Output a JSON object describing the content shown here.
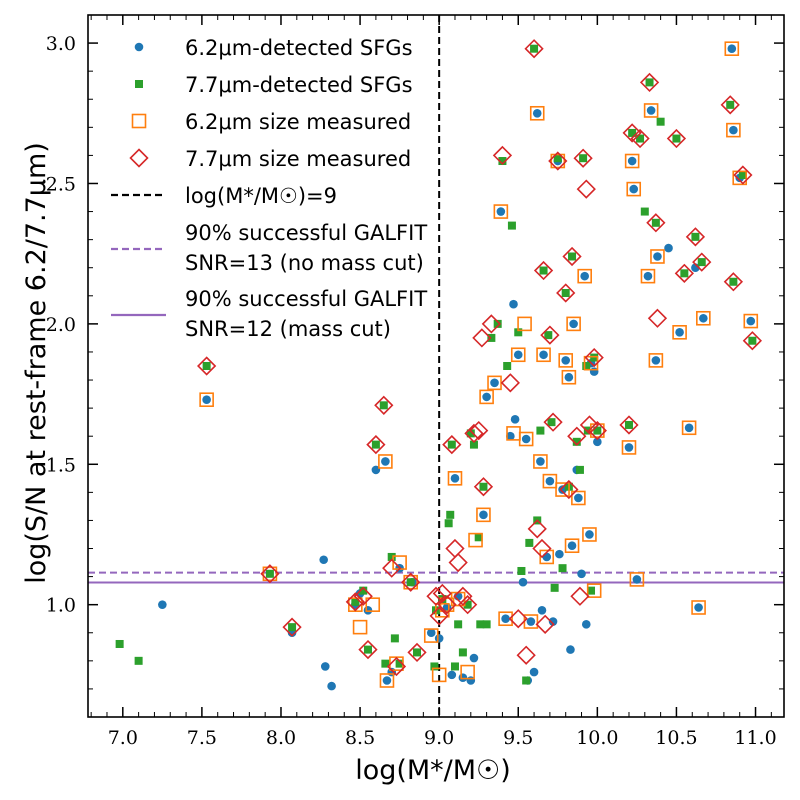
{
  "chart_data": {
    "type": "scatter",
    "title": "",
    "xlabel": "log(M*/M☉)",
    "ylabel": "log(S/N at rest-frame 6.2/7.7μm)",
    "xlim": [
      6.78,
      11.18
    ],
    "ylim": [
      0.6,
      3.1
    ],
    "x_ticks": [
      "7.0",
      "7.5",
      "8.0",
      "8.5",
      "9.0",
      "9.5",
      "10.0",
      "10.5",
      "11.0"
    ],
    "y_ticks": [
      "1.0",
      "1.5",
      "2.0",
      "2.5",
      "3.0"
    ],
    "grid": false,
    "legend_position": "top-left",
    "colors": {
      "blue": "#1f77b4",
      "green": "#2ca02c",
      "orange": "#ff7f0e",
      "red": "#d62728",
      "purple": "#9467bd",
      "black": "#000000"
    },
    "legend": [
      {
        "label": "6.2μm-detected SFGs",
        "marker": "circle",
        "color": "#1f77b4"
      },
      {
        "label": "7.7μm-detected SFGs",
        "marker": "square",
        "color": "#2ca02c"
      },
      {
        "label": "6.2μm size measured",
        "marker": "open-square",
        "color": "#ff7f0e"
      },
      {
        "label": "7.7μm size measured",
        "marker": "open-diamond",
        "color": "#d62728"
      },
      {
        "label": "log(M*/M☉)=9",
        "marker": "dashed-line",
        "color": "#000000"
      },
      {
        "label": "90% successful GALFIT",
        "label2": "SNR=13 (no mass cut)",
        "marker": "dashed-line",
        "color": "#9467bd"
      },
      {
        "label": "90% successful GALFIT",
        "label2": "SNR=12 (mass cut)",
        "marker": "solid-line",
        "color": "#9467bd"
      }
    ],
    "reference_lines": [
      {
        "orientation": "vertical",
        "x": 9.0,
        "style": "dashed",
        "color": "#000000"
      },
      {
        "orientation": "horizontal",
        "y": 1.114,
        "style": "dashed",
        "color": "#9467bd"
      },
      {
        "orientation": "horizontal",
        "y": 1.079,
        "style": "solid",
        "color": "#9467bd"
      }
    ],
    "series": [
      {
        "name": "6.2μm-detected SFGs",
        "marker": "circle",
        "points": [
          [
            7.25,
            1.0
          ],
          [
            7.53,
            1.73
          ],
          [
            8.07,
            0.9
          ],
          [
            8.27,
            1.16
          ],
          [
            8.28,
            0.78
          ],
          [
            8.32,
            0.71
          ],
          [
            8.47,
            1.0
          ],
          [
            8.5,
            1.04
          ],
          [
            8.55,
            0.98
          ],
          [
            8.6,
            1.48
          ],
          [
            8.66,
            1.51
          ],
          [
            8.67,
            0.73
          ],
          [
            8.7,
            0.76
          ],
          [
            8.75,
            1.13
          ],
          [
            8.83,
            1.08
          ],
          [
            8.95,
            0.9
          ],
          [
            9.0,
            0.88
          ],
          [
            9.05,
            0.99
          ],
          [
            9.08,
            0.75
          ],
          [
            9.1,
            1.45
          ],
          [
            9.12,
            1.03
          ],
          [
            9.15,
            0.74
          ],
          [
            9.2,
            0.73
          ],
          [
            9.22,
            0.81
          ],
          [
            9.28,
            1.32
          ],
          [
            9.3,
            1.74
          ],
          [
            9.35,
            1.79
          ],
          [
            9.39,
            2.4
          ],
          [
            9.42,
            0.95
          ],
          [
            9.45,
            1.6
          ],
          [
            9.47,
            2.07
          ],
          [
            9.48,
            1.66
          ],
          [
            9.5,
            1.89
          ],
          [
            9.53,
            1.08
          ],
          [
            9.55,
            1.59
          ],
          [
            9.56,
            0.73
          ],
          [
            9.58,
            0.94
          ],
          [
            9.6,
            0.76
          ],
          [
            9.62,
            2.75
          ],
          [
            9.64,
            1.51
          ],
          [
            9.65,
            0.98
          ],
          [
            9.66,
            1.89
          ],
          [
            9.68,
            1.17
          ],
          [
            9.7,
            1.44
          ],
          [
            9.72,
            0.94
          ],
          [
            9.75,
            2.58
          ],
          [
            9.76,
            1.18
          ],
          [
            9.78,
            1.41
          ],
          [
            9.8,
            1.87
          ],
          [
            9.82,
            1.81
          ],
          [
            9.83,
            0.84
          ],
          [
            9.84,
            1.21
          ],
          [
            9.85,
            2.0
          ],
          [
            9.87,
            1.48
          ],
          [
            9.88,
            1.38
          ],
          [
            9.9,
            1.11
          ],
          [
            9.92,
            2.17
          ],
          [
            9.93,
            0.93
          ],
          [
            9.95,
            1.25
          ],
          [
            9.96,
            1.86
          ],
          [
            9.98,
            1.83
          ],
          [
            10.0,
            1.58
          ],
          [
            10.2,
            1.56
          ],
          [
            10.22,
            2.58
          ],
          [
            10.23,
            2.48
          ],
          [
            10.25,
            1.09
          ],
          [
            10.32,
            2.17
          ],
          [
            10.34,
            2.76
          ],
          [
            10.37,
            1.87
          ],
          [
            10.38,
            2.24
          ],
          [
            10.45,
            2.27
          ],
          [
            10.52,
            1.97
          ],
          [
            10.58,
            1.63
          ],
          [
            10.62,
            2.2
          ],
          [
            10.64,
            0.99
          ],
          [
            10.67,
            2.02
          ],
          [
            10.85,
            2.98
          ],
          [
            10.86,
            2.69
          ],
          [
            10.9,
            2.52
          ],
          [
            10.97,
            2.01
          ]
        ]
      },
      {
        "name": "7.7μm-detected SFGs",
        "marker": "square",
        "points": [
          [
            6.98,
            0.86
          ],
          [
            7.1,
            0.8
          ],
          [
            7.53,
            1.85
          ],
          [
            7.93,
            1.11
          ],
          [
            8.07,
            0.92
          ],
          [
            8.47,
            1.01
          ],
          [
            8.52,
            1.05
          ],
          [
            8.55,
            0.84
          ],
          [
            8.6,
            1.57
          ],
          [
            8.65,
            1.71
          ],
          [
            8.66,
            0.79
          ],
          [
            8.7,
            1.17
          ],
          [
            8.72,
            0.88
          ],
          [
            8.75,
            0.79
          ],
          [
            8.82,
            1.08
          ],
          [
            8.86,
            0.83
          ],
          [
            8.97,
            0.78
          ],
          [
            8.98,
            0.98
          ],
          [
            9.02,
            1.02
          ],
          [
            9.06,
            1.29
          ],
          [
            9.07,
            1.32
          ],
          [
            9.08,
            1.57
          ],
          [
            9.1,
            0.78
          ],
          [
            9.12,
            0.93
          ],
          [
            9.15,
            0.83
          ],
          [
            9.18,
            1.0
          ],
          [
            9.2,
            1.61
          ],
          [
            9.22,
            1.57
          ],
          [
            9.25,
            1.24
          ],
          [
            9.26,
            0.93
          ],
          [
            9.28,
            1.42
          ],
          [
            9.3,
            0.93
          ],
          [
            9.33,
            1.95
          ],
          [
            9.37,
            2.0
          ],
          [
            9.4,
            2.58
          ],
          [
            9.43,
            1.85
          ],
          [
            9.46,
            2.35
          ],
          [
            9.5,
            1.97
          ],
          [
            9.52,
            1.12
          ],
          [
            9.55,
            0.73
          ],
          [
            9.57,
            1.22
          ],
          [
            9.6,
            2.98
          ],
          [
            9.62,
            1.3
          ],
          [
            9.64,
            1.62
          ],
          [
            9.66,
            2.19
          ],
          [
            9.69,
            1.96
          ],
          [
            9.71,
            1.65
          ],
          [
            9.73,
            1.06
          ],
          [
            9.75,
            2.59
          ],
          [
            9.78,
            1.13
          ],
          [
            9.8,
            2.11
          ],
          [
            9.82,
            1.42
          ],
          [
            9.84,
            2.24
          ],
          [
            9.87,
            1.58
          ],
          [
            9.89,
            1.48
          ],
          [
            9.91,
            2.59
          ],
          [
            9.93,
            1.85
          ],
          [
            9.94,
            1.62
          ],
          [
            9.96,
            1.05
          ],
          [
            9.98,
            1.88
          ],
          [
            10.0,
            1.62
          ],
          [
            10.2,
            1.64
          ],
          [
            10.22,
            2.68
          ],
          [
            10.27,
            2.66
          ],
          [
            10.3,
            2.4
          ],
          [
            10.33,
            2.86
          ],
          [
            10.37,
            2.36
          ],
          [
            10.4,
            2.72
          ],
          [
            10.5,
            2.66
          ],
          [
            10.55,
            2.18
          ],
          [
            10.62,
            2.31
          ],
          [
            10.66,
            2.22
          ],
          [
            10.84,
            2.78
          ],
          [
            10.86,
            2.15
          ],
          [
            10.92,
            2.53
          ],
          [
            10.98,
            1.94
          ]
        ]
      },
      {
        "name": "6.2μm size measured",
        "marker": "open-square",
        "points": [
          [
            7.53,
            1.73
          ],
          [
            7.93,
            1.11
          ],
          [
            8.47,
            1.0
          ],
          [
            8.5,
            0.92
          ],
          [
            8.58,
            1.0
          ],
          [
            8.66,
            1.51
          ],
          [
            8.67,
            0.73
          ],
          [
            8.73,
            0.79
          ],
          [
            8.75,
            1.15
          ],
          [
            8.82,
            1.08
          ],
          [
            8.95,
            0.89
          ],
          [
            9.0,
            0.75
          ],
          [
            9.02,
            0.98
          ],
          [
            9.05,
            1.0
          ],
          [
            9.1,
            1.45
          ],
          [
            9.12,
            1.02
          ],
          [
            9.18,
            0.76
          ],
          [
            9.23,
            1.23
          ],
          [
            9.28,
            1.32
          ],
          [
            9.3,
            1.74
          ],
          [
            9.35,
            1.79
          ],
          [
            9.39,
            2.4
          ],
          [
            9.42,
            0.95
          ],
          [
            9.47,
            1.61
          ],
          [
            9.5,
            1.89
          ],
          [
            9.54,
            2.0
          ],
          [
            9.55,
            1.59
          ],
          [
            9.58,
            0.94
          ],
          [
            9.62,
            2.75
          ],
          [
            9.64,
            1.51
          ],
          [
            9.66,
            1.89
          ],
          [
            9.68,
            1.17
          ],
          [
            9.7,
            1.44
          ],
          [
            9.75,
            2.58
          ],
          [
            9.78,
            1.41
          ],
          [
            9.8,
            1.87
          ],
          [
            9.82,
            1.81
          ],
          [
            9.84,
            1.21
          ],
          [
            9.85,
            2.0
          ],
          [
            9.88,
            1.38
          ],
          [
            9.92,
            2.17
          ],
          [
            9.95,
            1.25
          ],
          [
            9.96,
            1.86
          ],
          [
            9.98,
            1.05
          ],
          [
            10.0,
            1.62
          ],
          [
            10.2,
            1.56
          ],
          [
            10.22,
            2.58
          ],
          [
            10.23,
            2.48
          ],
          [
            10.25,
            1.09
          ],
          [
            10.32,
            2.17
          ],
          [
            10.34,
            2.76
          ],
          [
            10.37,
            1.87
          ],
          [
            10.38,
            2.24
          ],
          [
            10.52,
            1.97
          ],
          [
            10.58,
            1.63
          ],
          [
            10.64,
            0.99
          ],
          [
            10.67,
            2.02
          ],
          [
            10.85,
            2.98
          ],
          [
            10.86,
            2.69
          ],
          [
            10.9,
            2.52
          ],
          [
            10.97,
            2.01
          ]
        ]
      },
      {
        "name": "7.7μm size measured",
        "marker": "open-diamond",
        "points": [
          [
            7.53,
            1.85
          ],
          [
            7.93,
            1.11
          ],
          [
            8.07,
            0.92
          ],
          [
            8.47,
            1.01
          ],
          [
            8.52,
            1.03
          ],
          [
            8.55,
            0.84
          ],
          [
            8.6,
            1.57
          ],
          [
            8.65,
            1.71
          ],
          [
            8.7,
            1.13
          ],
          [
            8.73,
            0.78
          ],
          [
            8.82,
            1.08
          ],
          [
            8.86,
            0.83
          ],
          [
            8.98,
            1.03
          ],
          [
            9.0,
            0.96
          ],
          [
            9.02,
            1.04
          ],
          [
            9.05,
            1.0
          ],
          [
            9.08,
            1.57
          ],
          [
            9.1,
            1.2
          ],
          [
            9.12,
            1.15
          ],
          [
            9.15,
            1.03
          ],
          [
            9.18,
            1.0
          ],
          [
            9.22,
            1.61
          ],
          [
            9.25,
            1.62
          ],
          [
            9.28,
            1.42
          ],
          [
            9.27,
            1.95
          ],
          [
            9.33,
            2.0
          ],
          [
            9.4,
            2.6
          ],
          [
            9.45,
            1.79
          ],
          [
            9.5,
            0.95
          ],
          [
            9.55,
            0.82
          ],
          [
            9.6,
            2.98
          ],
          [
            9.62,
            1.27
          ],
          [
            9.65,
            1.2
          ],
          [
            9.66,
            2.19
          ],
          [
            9.7,
            1.96
          ],
          [
            9.72,
            1.65
          ],
          [
            9.75,
            2.58
          ],
          [
            9.8,
            2.11
          ],
          [
            9.82,
            1.41
          ],
          [
            9.84,
            2.24
          ],
          [
            9.87,
            1.6
          ],
          [
            9.89,
            1.03
          ],
          [
            9.91,
            2.59
          ],
          [
            9.93,
            2.48
          ],
          [
            9.95,
            1.64
          ],
          [
            9.98,
            1.88
          ],
          [
            10.0,
            1.62
          ],
          [
            10.2,
            1.64
          ],
          [
            10.22,
            2.68
          ],
          [
            10.27,
            2.66
          ],
          [
            10.33,
            2.86
          ],
          [
            10.37,
            2.36
          ],
          [
            10.38,
            2.02
          ],
          [
            10.5,
            2.66
          ],
          [
            10.55,
            2.18
          ],
          [
            10.62,
            2.31
          ],
          [
            10.66,
            2.22
          ],
          [
            10.84,
            2.78
          ],
          [
            10.86,
            2.15
          ],
          [
            10.92,
            2.53
          ],
          [
            10.98,
            1.94
          ],
          [
            9.67,
            0.93
          ]
        ]
      }
    ]
  }
}
